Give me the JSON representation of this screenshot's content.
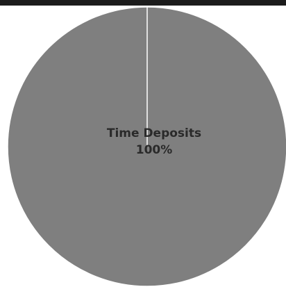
{
  "chart_data": {
    "type": "pie",
    "title": "",
    "slices": [
      {
        "label": "Time Deposits",
        "value": 100,
        "percent_label": "100%",
        "color": "#7f7f7f"
      }
    ],
    "legend": "none"
  }
}
